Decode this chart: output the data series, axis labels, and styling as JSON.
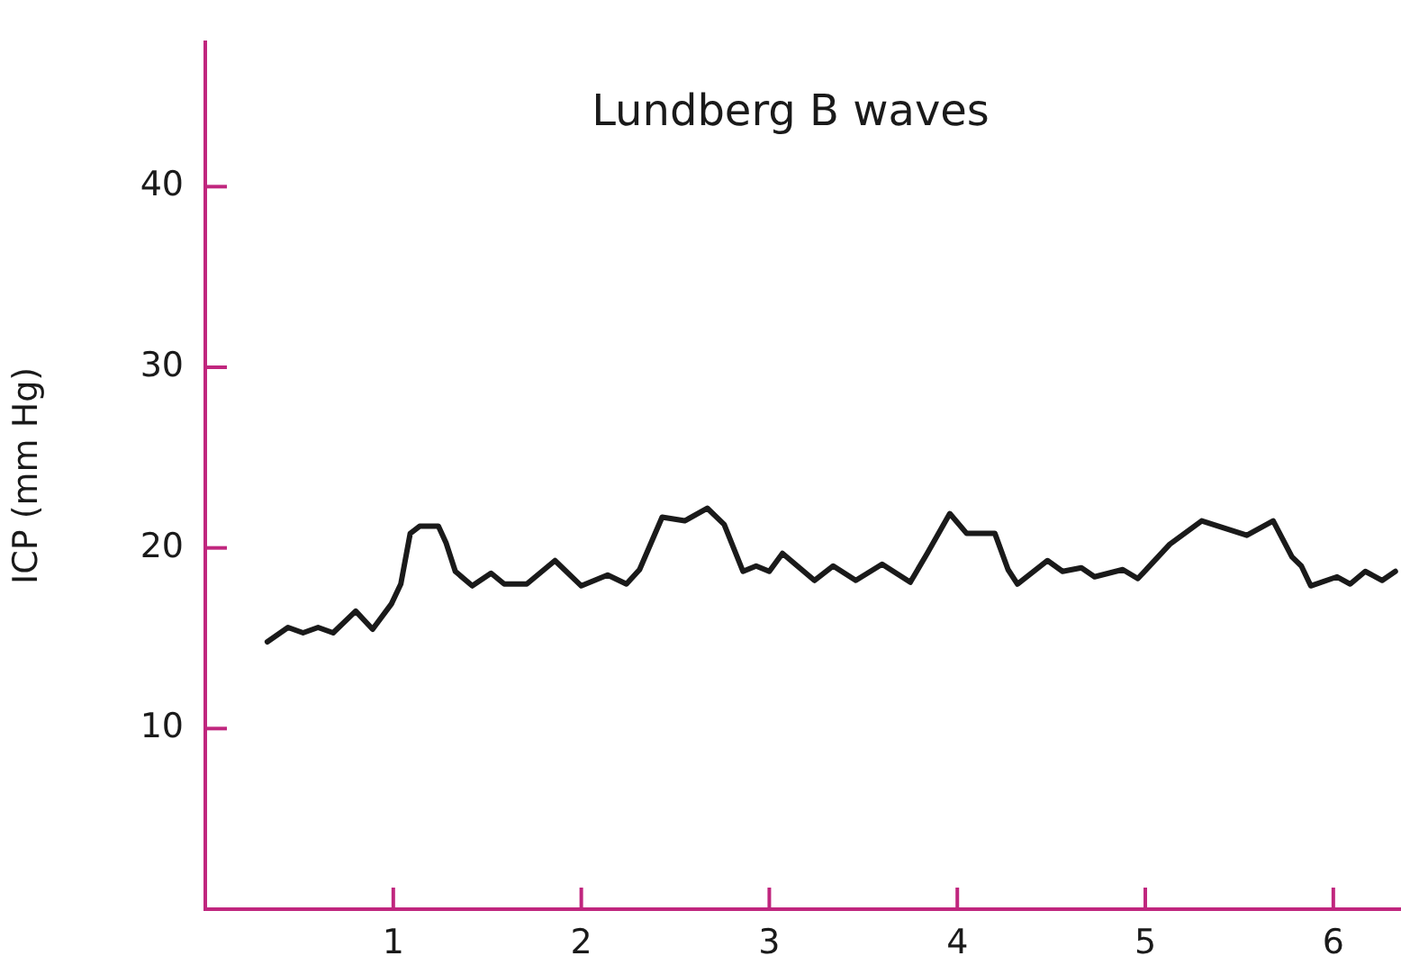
{
  "chart_data": {
    "type": "line",
    "title": "Lundberg B waves",
    "ylabel": "ICP (mm Hg)",
    "xlim": [
      0,
      6.36
    ],
    "xticks": [
      1,
      2,
      3,
      4,
      5,
      6
    ],
    "ylim": [
      0,
      48
    ],
    "yticks": [
      10,
      20,
      30,
      40
    ],
    "grid": false,
    "legend": false,
    "marker": "none",
    "line_style": "solid",
    "series": [
      {
        "color": "#1a1a1a",
        "x": [
          0.33,
          0.44,
          0.52,
          0.6,
          0.68,
          0.8,
          0.89,
          0.99,
          1.04,
          1.09,
          1.14,
          1.24,
          1.28,
          1.33,
          1.42,
          1.52,
          1.59,
          1.71,
          1.86,
          2.0,
          2.14,
          2.24,
          2.31,
          2.43,
          2.55,
          2.67,
          2.76,
          2.86,
          2.93,
          3.0,
          3.07,
          3.24,
          3.34,
          3.46,
          3.6,
          3.75,
          3.84,
          3.96,
          4.05,
          4.2,
          4.27,
          4.32,
          4.48,
          4.56,
          4.66,
          4.73,
          4.88,
          4.96,
          5.13,
          5.3,
          5.54,
          5.68,
          5.78,
          5.83,
          5.88,
          6.02,
          6.09,
          6.17,
          6.26,
          6.33
        ],
        "values": [
          14.8,
          15.6,
          15.3,
          15.6,
          15.3,
          16.5,
          15.5,
          16.9,
          18.0,
          20.8,
          21.2,
          21.2,
          20.3,
          18.7,
          17.9,
          18.6,
          18.0,
          18.0,
          19.3,
          17.9,
          18.5,
          18.0,
          18.8,
          21.7,
          21.5,
          22.2,
          21.3,
          18.7,
          19.0,
          18.7,
          19.7,
          18.2,
          19.0,
          18.2,
          19.1,
          18.1,
          19.7,
          21.9,
          20.8,
          20.8,
          18.8,
          18.0,
          19.3,
          18.7,
          18.9,
          18.4,
          18.8,
          18.3,
          20.2,
          21.5,
          20.7,
          21.5,
          19.5,
          19.0,
          17.9,
          18.4,
          18.0,
          18.7,
          18.2,
          18.7
        ]
      }
    ]
  }
}
